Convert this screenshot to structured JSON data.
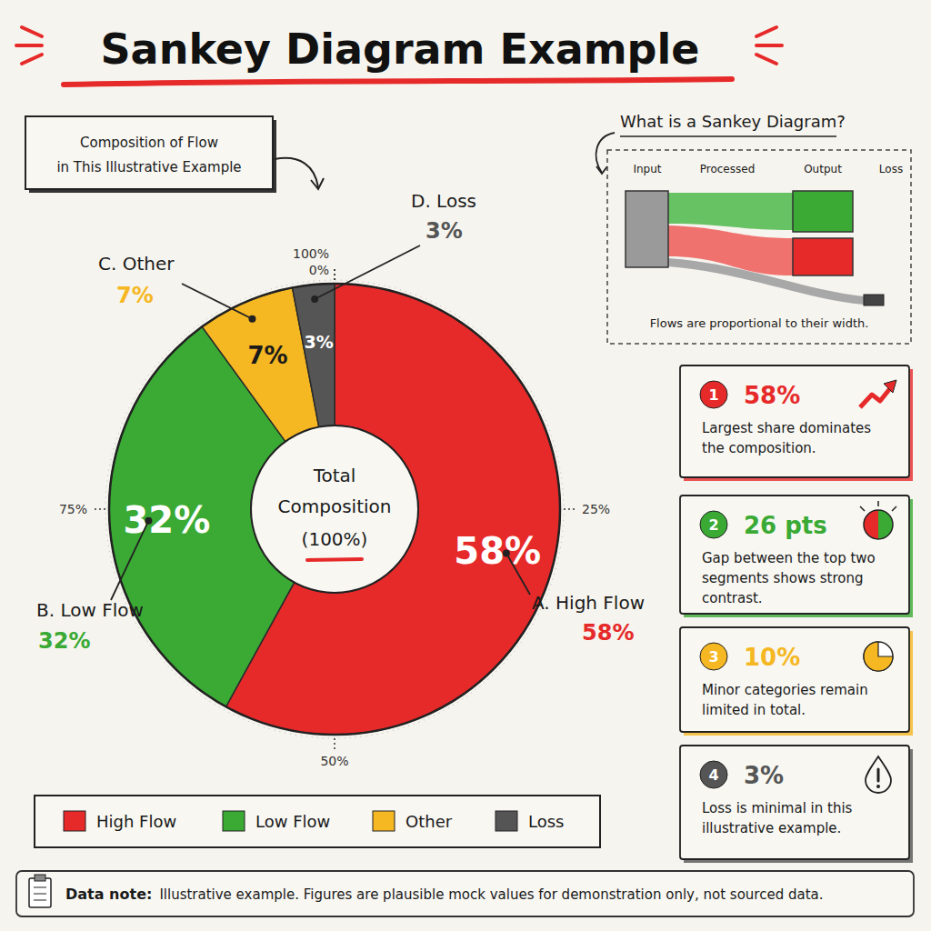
{
  "header": {
    "title": "Sankey Diagram Example"
  },
  "callout": {
    "lines": [
      "Composition of Flow",
      "in This Illustrative Example"
    ]
  },
  "chart_data": {
    "type": "donut",
    "categories": [
      "High Flow",
      "Low Flow",
      "Other",
      "Loss"
    ],
    "labels": [
      "A. High Flow",
      "B. Low Flow",
      "C. Other",
      "D. Loss"
    ],
    "values": [
      58,
      32,
      7,
      3
    ],
    "value_labels": [
      "58%",
      "32%",
      "7%",
      "3%"
    ],
    "colors": [
      "#e62a2a",
      "#3aaa35",
      "#f5b722",
      "#555555"
    ],
    "data_labels": true,
    "ylim": [
      0,
      100
    ],
    "yticks": [
      {
        "value": 0,
        "label": "0%"
      },
      {
        "value": 25,
        "label": "25%"
      },
      {
        "value": 50,
        "label": "50%"
      },
      {
        "value": 75,
        "label": "75%"
      },
      {
        "value": 100,
        "label": "100%"
      }
    ],
    "center_label": [
      "Total",
      "Composition",
      "(100%)"
    ],
    "legend": "bottom"
  },
  "sankey_inset": {
    "title": "What is a Sankey Diagram?",
    "columns": [
      "Input",
      "Processed",
      "Output",
      "Loss"
    ],
    "caption": "Flows are proportional to their width."
  },
  "cards": [
    {
      "number": "1",
      "value": "58%",
      "lines": [
        "Largest share dominates",
        "the composition."
      ],
      "color": "#e62a2a"
    },
    {
      "number": "2",
      "value": "26 pts",
      "lines": [
        "Gap between the top two",
        "segments shows strong",
        "contrast."
      ],
      "color": "#3aaa35"
    },
    {
      "number": "3",
      "value": "10%",
      "lines": [
        "Minor categories remain",
        "limited in total."
      ],
      "color": "#f5b722"
    },
    {
      "number": "4",
      "value": "3%",
      "lines": [
        "Loss is minimal in this",
        "illustrative example."
      ],
      "color": "#555555"
    }
  ],
  "data_note": {
    "label": "Data note:",
    "text": "Illustrative example. Figures are plausible mock values for demonstration only, not sourced data."
  }
}
